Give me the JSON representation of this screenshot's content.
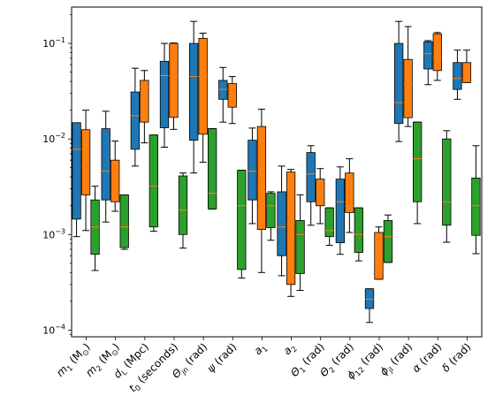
{
  "chart_data": {
    "type": "box",
    "title": "",
    "xlabel": "",
    "ylabel": "",
    "yscale": "log",
    "ylim": [
      8.5e-05,
      0.24
    ],
    "y_tick_labels": [
      "10^{-4}",
      "10^{-3}",
      "10^{-2}",
      "10^{-1}"
    ],
    "y_tick_values": [
      0.0001,
      0.001,
      0.01,
      0.1
    ],
    "categories": [
      {
        "base": "m",
        "sub": "1",
        "after": " (M",
        "sub2": "⊙",
        "end": ")"
      },
      {
        "base": "m",
        "sub": "2",
        "after": " (M",
        "sub2": "⊙",
        "end": ")"
      },
      {
        "base": "d",
        "sub": "L",
        "after": " (Mpc)",
        "sub2": "",
        "end": ""
      },
      {
        "base": "t",
        "sub": "0",
        "after": " (seconds)",
        "sub2": "",
        "end": ""
      },
      {
        "base": "Θ",
        "sub": "jn",
        "after": " (rad)",
        "sub2": "",
        "end": ""
      },
      {
        "base": "ψ",
        "sub": "",
        "after": " (rad)",
        "sub2": "",
        "end": ""
      },
      {
        "base": "a",
        "sub": "1",
        "after": "",
        "sub2": "",
        "end": ""
      },
      {
        "base": "a",
        "sub": "2",
        "after": "",
        "sub2": "",
        "end": ""
      },
      {
        "base": "Θ",
        "sub": "1",
        "after": " (rad)",
        "sub2": "",
        "end": ""
      },
      {
        "base": "Θ",
        "sub": "2",
        "after": " (rad)",
        "sub2": "",
        "end": ""
      },
      {
        "base": "ϕ",
        "sub": "12",
        "after": " (rad)",
        "sub2": "",
        "end": ""
      },
      {
        "base": "ϕ",
        "sub": "jl",
        "after": " (rad)",
        "sub2": "",
        "end": ""
      },
      {
        "base": "α",
        "sub": "",
        "after": " (rad)",
        "sub2": "",
        "end": ""
      },
      {
        "base": "δ",
        "sub": "",
        "after": " (rad)",
        "sub2": "",
        "end": ""
      }
    ],
    "colors": [
      "#1f77b4",
      "#ff7f0e",
      "#2ca02c"
    ],
    "median_color": "#ff7f0e",
    "series": [
      {
        "boxes": [
          {
            "wlo": 0.00095,
            "q1": 0.00145,
            "med": 0.0078,
            "q3": 0.0148,
            "whi": null
          },
          {
            "wlo": 0.00135,
            "q1": 0.0023,
            "med": 0.0046,
            "q3": 0.0128,
            "whi": 0.0195
          },
          {
            "wlo": 0.0052,
            "q1": 0.0078,
            "med": 0.0175,
            "q3": 0.031,
            "whi": 0.055
          },
          {
            "wlo": 0.0082,
            "q1": 0.0131,
            "med": 0.046,
            "q3": 0.065,
            "whi": 0.1
          },
          {
            "wlo": 0.0044,
            "q1": 0.0097,
            "med": 0.045,
            "q3": 0.1,
            "whi": 0.17
          },
          {
            "wlo": 0.015,
            "q1": 0.026,
            "med": 0.033,
            "q3": 0.041,
            "whi": 0.056
          },
          {
            "wlo": 0.0013,
            "q1": 0.0023,
            "med": 0.0046,
            "q3": 0.0097,
            "whi": 0.013
          },
          {
            "wlo": 0.00037,
            "q1": 0.0006,
            "med": 0.0012,
            "q3": 0.0028,
            "whi": 0.0052
          },
          {
            "wlo": 0.00125,
            "q1": 0.0022,
            "med": 0.0043,
            "q3": 0.0072,
            "whi": 0.0085
          },
          {
            "wlo": 0.00062,
            "q1": 0.00082,
            "med": 0.0022,
            "q3": 0.0038,
            "whi": 0.0051
          },
          {
            "wlo": 0.00012,
            "q1": 0.000168,
            "med": 0.00021,
            "q3": 0.00027,
            "whi": 0.00027
          },
          {
            "wlo": 0.0094,
            "q1": 0.0145,
            "med": 0.024,
            "q3": 0.1,
            "whi": 0.17
          },
          {
            "wlo": 0.037,
            "q1": 0.054,
            "med": 0.078,
            "q3": 0.104,
            "whi": 0.107
          },
          {
            "wlo": 0.026,
            "q1": 0.033,
            "med": 0.043,
            "q3": 0.063,
            "whi": 0.085
          }
        ]
      },
      {
        "boxes": [
          {
            "wlo": 0.0011,
            "q1": 0.0026,
            "med": 0.0052,
            "q3": 0.0125,
            "whi": 0.02
          },
          {
            "wlo": 0.00175,
            "q1": 0.0022,
            "med": 0.0027,
            "q3": 0.006,
            "whi": 0.0095
          },
          {
            "wlo": 0.0091,
            "q1": 0.015,
            "med": 0.035,
            "q3": 0.041,
            "whi": 0.052
          },
          {
            "wlo": 0.0126,
            "q1": 0.0168,
            "med": 0.046,
            "q3": 0.1,
            "whi": 0.101
          },
          {
            "wlo": 0.0057,
            "q1": 0.0112,
            "med": 0.045,
            "q3": 0.113,
            "whi": 0.128
          },
          {
            "wlo": 0.0145,
            "q1": 0.0215,
            "med": 0.028,
            "q3": 0.038,
            "whi": 0.045
          },
          {
            "wlo": 0.0004,
            "q1": 0.00113,
            "med": 0.0028,
            "q3": 0.0135,
            "whi": 0.0205
          },
          {
            "wlo": 0.000225,
            "q1": 0.0003,
            "med": 0.0013,
            "q3": 0.0045,
            "whi": 0.0048
          },
          {
            "wlo": 0.0013,
            "q1": 0.002,
            "med": 0.0032,
            "q3": 0.0038,
            "whi": 0.0049
          },
          {
            "wlo": 0.00105,
            "q1": 0.0017,
            "med": 0.002,
            "q3": 0.0044,
            "whi": 0.0062
          },
          {
            "wlo": 0.00034,
            "q1": 0.00034,
            "med": 0.00052,
            "q3": 0.00105,
            "whi": 0.0012
          },
          {
            "wlo": 0.0135,
            "q1": 0.0167,
            "med": 0.038,
            "q3": 0.068,
            "whi": 0.15
          },
          {
            "wlo": 0.041,
            "q1": 0.052,
            "med": 0.072,
            "q3": 0.126,
            "whi": 0.13
          },
          {
            "wlo": 0.039,
            "q1": 0.039,
            "med": 0.04,
            "q3": 0.063,
            "whi": 0.085
          }
        ]
      },
      {
        "boxes": [
          {
            "wlo": 0.00042,
            "q1": 0.00062,
            "med": 0.0012,
            "q3": 0.0023,
            "whi": 0.0032
          },
          {
            "wlo": 0.0007,
            "q1": 0.00073,
            "med": 0.0012,
            "q3": 0.0026,
            "whi": 0.0026
          },
          {
            "wlo": 0.00108,
            "q1": 0.0012,
            "med": 0.0032,
            "q3": 0.011,
            "whi": 0.011
          },
          {
            "wlo": 0.00072,
            "q1": 0.001,
            "med": 0.0018,
            "q3": 0.0041,
            "whi": 0.0044
          },
          {
            "wlo": 0.00185,
            "q1": 0.00185,
            "med": 0.0027,
            "q3": 0.0128,
            "whi": 0.0128
          },
          {
            "wlo": 0.00035,
            "q1": 0.00043,
            "med": 0.002,
            "q3": 0.0047,
            "whi": 0.0047
          },
          {
            "wlo": 0.00087,
            "q1": 0.00118,
            "med": 0.002,
            "q3": 0.0027,
            "whi": 0.0028
          },
          {
            "wlo": 0.00026,
            "q1": 0.00039,
            "med": 0.001,
            "q3": 0.0014,
            "whi": 0.0026
          },
          {
            "wlo": 0.00077,
            "q1": 0.00095,
            "med": 0.0011,
            "q3": 0.0019,
            "whi": 0.0019
          },
          {
            "wlo": 0.00053,
            "q1": 0.00065,
            "med": 0.001,
            "q3": 0.0019,
            "whi": 0.0019
          },
          {
            "wlo": 0.00051,
            "q1": 0.00051,
            "med": 0.00095,
            "q3": 0.0014,
            "whi": 0.0016
          },
          {
            "wlo": 0.0013,
            "q1": 0.0022,
            "med": 0.0062,
            "q3": 0.015,
            "whi": 0.015
          },
          {
            "wlo": 0.00083,
            "q1": 0.00125,
            "med": 0.0022,
            "q3": 0.01,
            "whi": 0.0122
          },
          {
            "wlo": 0.00063,
            "q1": 0.00098,
            "med": 0.002,
            "q3": 0.0039,
            "whi": 0.0085
          }
        ]
      }
    ]
  }
}
